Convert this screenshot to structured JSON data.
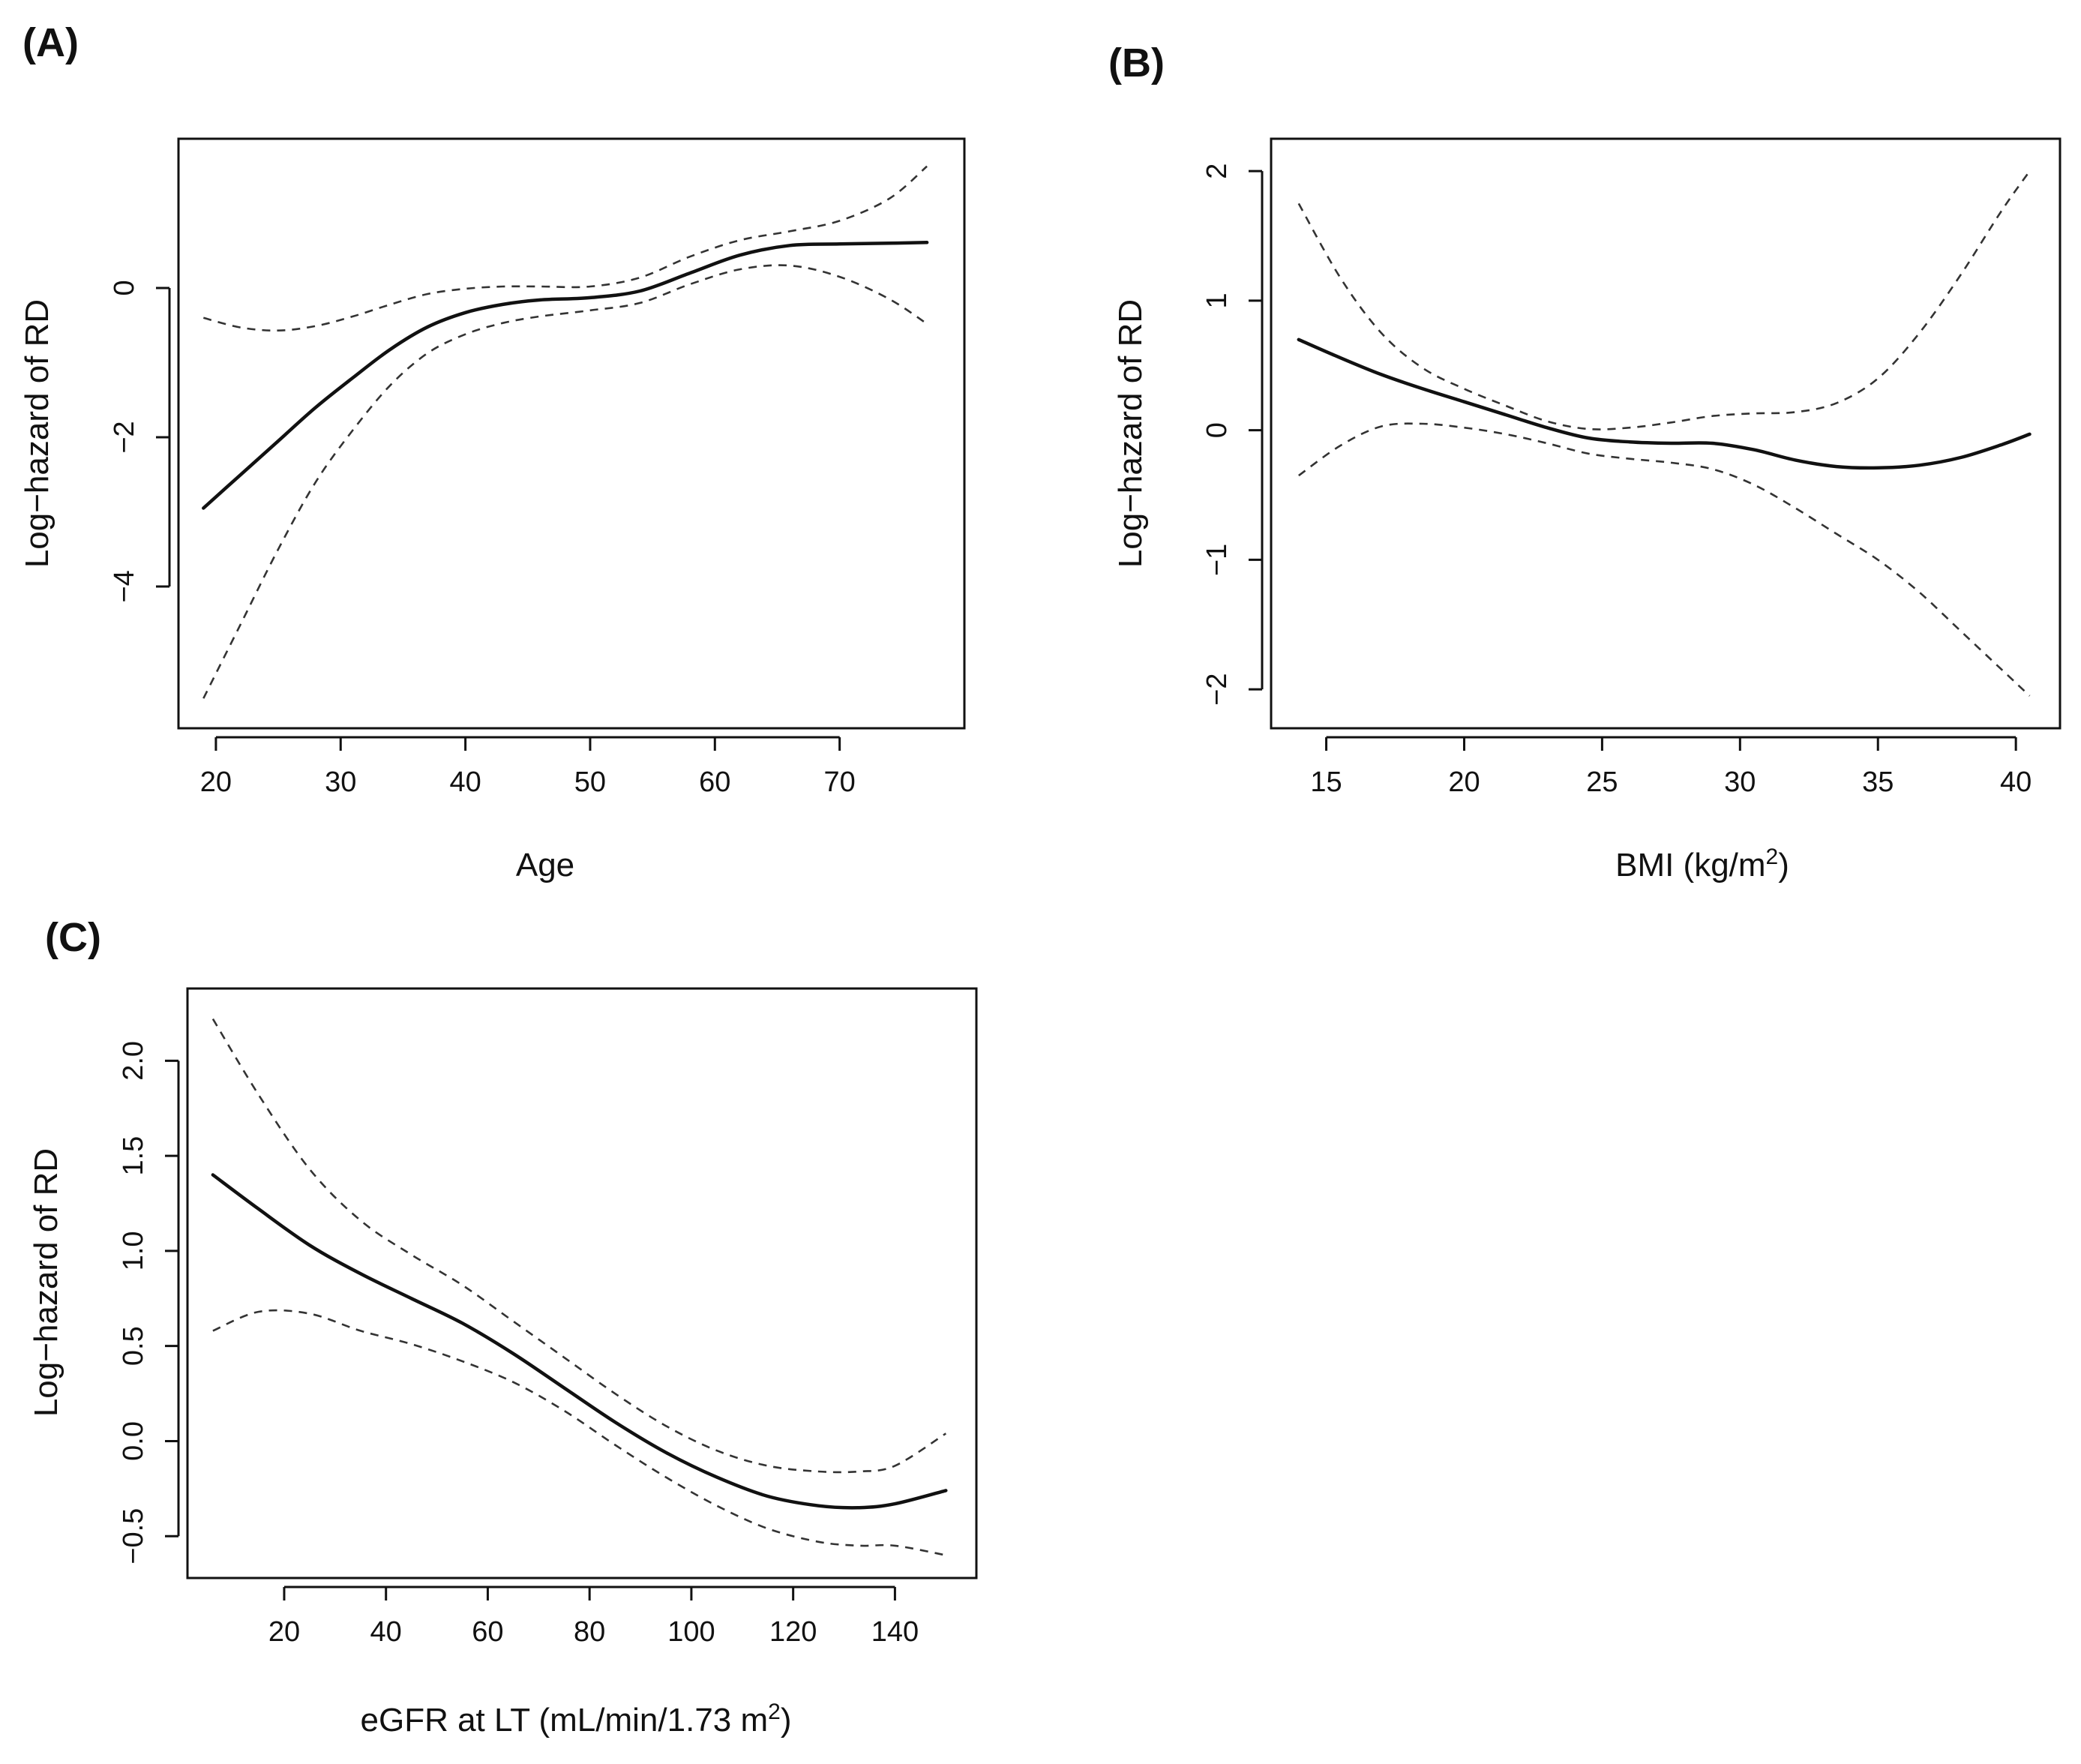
{
  "chart_data": [
    {
      "type": "line",
      "panel_label": "(A)",
      "xlabel": "Age",
      "xlabel_sup": "",
      "xlabel_after": "",
      "ylabel": "Log−hazard of RD",
      "xlim": [
        17,
        80
      ],
      "ylim": [
        -5.9,
        2.0
      ],
      "x_ticks": [
        20,
        30,
        40,
        50,
        60,
        70
      ],
      "x_tick_labels": [
        "20",
        "30",
        "40",
        "50",
        "60",
        "70"
      ],
      "y_ticks": [
        -4,
        -2,
        0
      ],
      "y_tick_labels": [
        "−4",
        "−2",
        "0"
      ],
      "series": [
        {
          "role": "estimate",
          "style": "solid",
          "x": [
            19,
            22,
            25,
            28,
            31,
            34,
            37,
            40,
            43,
            46,
            50,
            54,
            58,
            62,
            66,
            70,
            74,
            77
          ],
          "y": [
            -2.95,
            -2.5,
            -2.05,
            -1.6,
            -1.2,
            -0.82,
            -0.52,
            -0.33,
            -0.22,
            -0.16,
            -0.13,
            -0.04,
            0.2,
            0.44,
            0.57,
            0.59,
            0.6,
            0.61
          ]
        },
        {
          "role": "upper",
          "style": "dashed",
          "x": [
            19,
            22,
            25,
            28,
            31,
            34,
            37,
            40,
            43,
            46,
            50,
            54,
            58,
            62,
            66,
            70,
            74,
            77
          ],
          "y": [
            -0.4,
            -0.53,
            -0.57,
            -0.51,
            -0.38,
            -0.22,
            -0.08,
            -0.01,
            0.02,
            0.02,
            0.02,
            0.14,
            0.42,
            0.64,
            0.76,
            0.9,
            1.2,
            1.63
          ]
        },
        {
          "role": "lower",
          "style": "dashed",
          "x": [
            19,
            22,
            25,
            28,
            31,
            34,
            37,
            40,
            43,
            46,
            50,
            54,
            58,
            62,
            66,
            70,
            74,
            77
          ],
          "y": [
            -5.5,
            -4.5,
            -3.5,
            -2.6,
            -1.9,
            -1.3,
            -0.87,
            -0.62,
            -0.47,
            -0.38,
            -0.3,
            -0.2,
            0.05,
            0.25,
            0.3,
            0.15,
            -0.15,
            -0.48
          ]
        }
      ]
    },
    {
      "type": "line",
      "panel_label": "(B)",
      "xlabel": "BMI (kg/m",
      "xlabel_sup": "2",
      "xlabel_after": ")",
      "ylabel": "Log−hazard of RD",
      "xlim": [
        13,
        41.6
      ],
      "ylim": [
        -2.3,
        2.25
      ],
      "x_ticks": [
        15,
        20,
        25,
        30,
        35,
        40
      ],
      "x_tick_labels": [
        "15",
        "20",
        "25",
        "30",
        "35",
        "40"
      ],
      "y_ticks": [
        -2,
        -1,
        0,
        1,
        2
      ],
      "y_tick_labels": [
        "−2",
        "−1",
        "0",
        "1",
        "2"
      ],
      "series": [
        {
          "role": "estimate",
          "style": "solid",
          "x": [
            14,
            15.5,
            17,
            18.5,
            20,
            21.5,
            23,
            24.5,
            26,
            27.5,
            29,
            30.5,
            32,
            33.5,
            35,
            36.5,
            38,
            39.5,
            40.5
          ],
          "y": [
            0.7,
            0.56,
            0.43,
            0.32,
            0.22,
            0.12,
            0.02,
            -0.06,
            -0.09,
            -0.1,
            -0.1,
            -0.15,
            -0.23,
            -0.28,
            -0.29,
            -0.27,
            -0.21,
            -0.11,
            -0.03
          ]
        },
        {
          "role": "upper",
          "style": "dashed",
          "x": [
            14,
            15.5,
            17,
            18.5,
            20,
            21.5,
            23,
            24.5,
            26,
            27.5,
            29,
            30.5,
            32,
            33.5,
            35,
            36.5,
            38,
            39.5,
            40.5
          ],
          "y": [
            1.75,
            1.18,
            0.75,
            0.48,
            0.32,
            0.19,
            0.07,
            0.01,
            0.02,
            0.06,
            0.11,
            0.13,
            0.14,
            0.21,
            0.4,
            0.75,
            1.2,
            1.7,
            2.0
          ]
        },
        {
          "role": "lower",
          "style": "dashed",
          "x": [
            14,
            15.5,
            17,
            18.5,
            20,
            21.5,
            23,
            24.5,
            26,
            27.5,
            29,
            30.5,
            32,
            33.5,
            35,
            36.5,
            38,
            39.5,
            40.5
          ],
          "y": [
            -0.35,
            -0.12,
            0.03,
            0.05,
            0.02,
            -0.03,
            -0.1,
            -0.18,
            -0.22,
            -0.25,
            -0.3,
            -0.42,
            -0.6,
            -0.8,
            -1.0,
            -1.25,
            -1.55,
            -1.85,
            -2.05
          ]
        }
      ]
    },
    {
      "type": "line",
      "panel_label": "(C)",
      "xlabel": "eGFR at LT (mL/min/1.73 m",
      "xlabel_sup": "2",
      "xlabel_after": ")",
      "ylabel": "Log−hazard of RD",
      "xlim": [
        1,
        156
      ],
      "ylim": [
        -0.72,
        2.38
      ],
      "x_ticks": [
        20,
        40,
        60,
        80,
        100,
        120,
        140
      ],
      "x_tick_labels": [
        "20",
        "40",
        "60",
        "80",
        "100",
        "120",
        "140"
      ],
      "y_ticks": [
        -0.5,
        0.0,
        0.5,
        1.0,
        1.5,
        2.0
      ],
      "y_tick_labels": [
        "−0.5",
        "0.0",
        "0.5",
        "1.0",
        "1.5",
        "2.0"
      ],
      "series": [
        {
          "role": "estimate",
          "style": "solid",
          "x": [
            6,
            15,
            25,
            35,
            45,
            55,
            65,
            75,
            85,
            95,
            105,
            115,
            125,
            133,
            140,
            150
          ],
          "y": [
            1.4,
            1.22,
            1.03,
            0.88,
            0.75,
            0.62,
            0.46,
            0.28,
            0.1,
            -0.06,
            -0.19,
            -0.29,
            -0.34,
            -0.35,
            -0.33,
            -0.26
          ]
        },
        {
          "role": "upper",
          "style": "dashed",
          "x": [
            6,
            15,
            25,
            35,
            45,
            55,
            65,
            75,
            85,
            95,
            105,
            115,
            125,
            133,
            140,
            150
          ],
          "y": [
            2.22,
            1.82,
            1.43,
            1.16,
            0.98,
            0.82,
            0.63,
            0.44,
            0.25,
            0.08,
            -0.05,
            -0.13,
            -0.16,
            -0.16,
            -0.13,
            0.04
          ]
        },
        {
          "role": "lower",
          "style": "dashed",
          "x": [
            6,
            15,
            25,
            35,
            45,
            55,
            65,
            75,
            85,
            95,
            105,
            115,
            125,
            133,
            140,
            150
          ],
          "y": [
            0.58,
            0.68,
            0.67,
            0.58,
            0.51,
            0.42,
            0.31,
            0.16,
            -0.02,
            -0.19,
            -0.34,
            -0.46,
            -0.53,
            -0.55,
            -0.55,
            -0.6
          ]
        }
      ]
    }
  ]
}
